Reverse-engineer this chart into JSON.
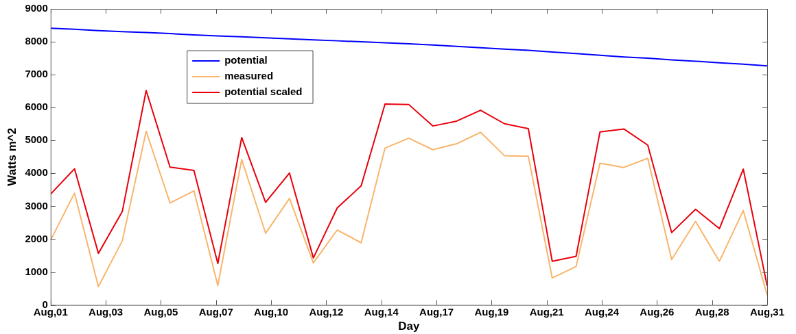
{
  "chart_data": {
    "type": "line",
    "xlabel": "Day",
    "ylabel": "Watts m^2",
    "x": [
      "--08-01",
      "--08-02",
      "--08-03",
      "--08-04",
      "--08-05",
      "--08-06",
      "--08-07",
      "--08-08",
      "--08-09",
      "--08-10",
      "--08-11",
      "--08-12",
      "--08-13",
      "--08-14",
      "--08-15",
      "--08-16",
      "--08-17",
      "--08-18",
      "--08-19",
      "--08-20",
      "--08-21",
      "--08-22",
      "--08-23",
      "--08-24",
      "--08-25",
      "--08-26",
      "--08-27",
      "--08-28",
      "--08-29",
      "--08-30",
      "--08-31"
    ],
    "xlim": [
      "--08-01",
      "--08-31"
    ],
    "xticks": [
      {
        "value": "--08-01",
        "label": "Aug,01"
      },
      {
        "value": "--08-03T07:23",
        "label": "Aug,03"
      },
      {
        "value": "--08-05T14:46",
        "label": "Aug,05"
      },
      {
        "value": "--08-07T22:09",
        "label": "Aug,07"
      },
      {
        "value": "--08-10T05:32",
        "label": "Aug,10"
      },
      {
        "value": "--08-12T12:55",
        "label": "Aug,12"
      },
      {
        "value": "--08-14T20:18",
        "label": "Aug,14"
      },
      {
        "value": "--08-17T03:42",
        "label": "Aug,17"
      },
      {
        "value": "--08-19T11:05",
        "label": "Aug,19"
      },
      {
        "value": "--08-21T18:28",
        "label": "Aug,21"
      },
      {
        "value": "--08-24T01:51",
        "label": "Aug,24"
      },
      {
        "value": "--08-26T09:14",
        "label": "Aug,26"
      },
      {
        "value": "--08-28T16:37",
        "label": "Aug,28"
      },
      {
        "value": "--08-31",
        "label": "Aug,31"
      }
    ],
    "ylim": [
      0,
      9000
    ],
    "yticks": [
      0,
      1000,
      2000,
      3000,
      4000,
      5000,
      6000,
      7000,
      8000,
      9000
    ],
    "grid": false,
    "legend": "top left",
    "marker": "none",
    "line_style": "solid",
    "series": [
      {
        "name": "potential",
        "color": "#0000ff",
        "values": [
          8410,
          8380,
          8340,
          8310,
          8280,
          8250,
          8210,
          8180,
          8150,
          8120,
          8090,
          8060,
          8030,
          8000,
          7970,
          7940,
          7900,
          7860,
          7820,
          7780,
          7740,
          7690,
          7640,
          7590,
          7540,
          7500,
          7450,
          7410,
          7360,
          7320,
          7270
        ]
      },
      {
        "name": "measured",
        "color": "#f9b56b",
        "values": [
          1970,
          3400,
          560,
          1950,
          5280,
          3100,
          3470,
          590,
          4420,
          2180,
          3240,
          1280,
          2280,
          1890,
          4770,
          5070,
          4720,
          4900,
          5250,
          4540,
          4520,
          820,
          1170,
          4310,
          4180,
          4460,
          1380,
          2540,
          1330,
          2870,
          300
        ]
      },
      {
        "name": "potential scaled",
        "color": "#e8000b",
        "values": [
          3370,
          4140,
          1570,
          2840,
          6520,
          4190,
          4090,
          1260,
          5090,
          3120,
          4010,
          1430,
          2950,
          3620,
          6110,
          6090,
          5440,
          5590,
          5920,
          5510,
          5360,
          1330,
          1480,
          5260,
          5350,
          4860,
          2200,
          2910,
          2320,
          4130,
          580
        ]
      }
    ]
  }
}
